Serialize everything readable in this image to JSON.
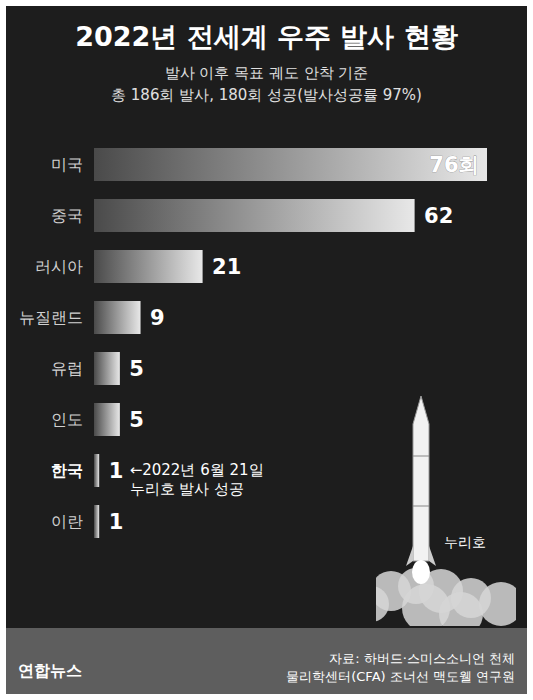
{
  "chart_data": {
    "type": "bar",
    "orientation": "horizontal",
    "title": "2022년 전세계 우주 발사 현황",
    "subtitle": [
      "발사 이후 목표 궤도 안착 기준",
      "총 186회 발사, 180회 성공(발사성공률 97%)"
    ],
    "categories": [
      "미국",
      "중국",
      "러시아",
      "뉴질랜드",
      "유럽",
      "인도",
      "한국",
      "이란"
    ],
    "values": [
      76,
      62,
      21,
      9,
      5,
      5,
      1,
      1
    ],
    "value_labels": [
      "76회",
      "62",
      "21",
      "9",
      "5",
      "5",
      "1",
      "1"
    ],
    "data_labels": true,
    "tick_labels": "y",
    "grid": false,
    "xlim": [
      0,
      76
    ],
    "color": "#e8e8e8",
    "annotations": [
      {
        "category": "한국",
        "text": [
          "←2022년 6월 21일",
          "누리호 발사 성공"
        ]
      },
      {
        "text": [
          "누리호"
        ]
      }
    ],
    "source": [
      "자료: 하버드·스미스소니언 천체",
      "물리학센터(CFA) 조너선 맥도웰 연구원"
    ],
    "logo": "연합뉴스"
  }
}
